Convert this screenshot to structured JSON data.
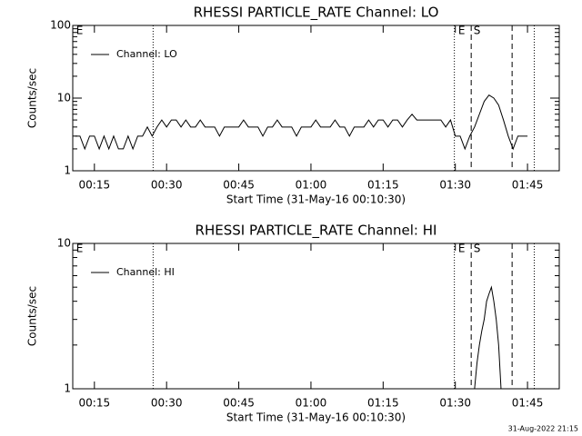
{
  "chart_data": [
    {
      "type": "line",
      "title": "RHESSI PARTICLE_RATE Channel: LO",
      "xlabel": "Start Time (31-May-16 00:10:30)",
      "ylabel": "Counts/sec",
      "log_y": true,
      "legend": "upper left",
      "xlim": [
        10.5,
        111.6
      ],
      "ylim": [
        1,
        100
      ],
      "yticks": [
        1,
        10,
        100
      ],
      "xticks": [
        {
          "value": 15,
          "label": "00:15"
        },
        {
          "value": 30,
          "label": "00:30"
        },
        {
          "value": 45,
          "label": "00:45"
        },
        {
          "value": 60,
          "label": "01:00"
        },
        {
          "value": 75,
          "label": "01:15"
        },
        {
          "value": 90,
          "label": "01:30"
        },
        {
          "value": 105,
          "label": "01:45"
        }
      ],
      "x": [
        11,
        12,
        13,
        14,
        15,
        16,
        17,
        18,
        19,
        20,
        21,
        22,
        23,
        24,
        25,
        26,
        27,
        28,
        29,
        30,
        31,
        32,
        33,
        34,
        35,
        36,
        37,
        38,
        39,
        40,
        41,
        42,
        43,
        44,
        45,
        46,
        47,
        48,
        49,
        50,
        51,
        52,
        53,
        54,
        55,
        56,
        57,
        58,
        59,
        60,
        61,
        62,
        63,
        64,
        65,
        66,
        67,
        68,
        69,
        70,
        71,
        72,
        73,
        74,
        75,
        76,
        77,
        78,
        79,
        80,
        81,
        82,
        83,
        84,
        85,
        86,
        87,
        88,
        89,
        90,
        91,
        92,
        93,
        94,
        95,
        96,
        97,
        98,
        99,
        100,
        101,
        102,
        103,
        104,
        105
      ],
      "series": [
        {
          "name": "Channel: LO",
          "color": "#000000",
          "values": [
            3,
            3,
            2,
            3,
            3,
            2,
            3,
            2,
            3,
            2,
            2,
            3,
            2,
            3,
            3,
            4,
            3,
            4,
            5,
            4,
            5,
            5,
            4,
            5,
            4,
            4,
            5,
            4,
            4,
            4,
            3,
            4,
            4,
            4,
            4,
            5,
            4,
            4,
            4,
            3,
            4,
            4,
            5,
            4,
            4,
            4,
            3,
            4,
            4,
            4,
            5,
            4,
            4,
            4,
            5,
            4,
            4,
            3,
            4,
            4,
            4,
            5,
            4,
            5,
            5,
            4,
            5,
            5,
            4,
            5,
            6,
            5,
            5,
            5,
            5,
            5,
            5,
            4,
            5,
            3,
            3,
            2,
            3,
            4,
            6,
            9,
            11,
            10,
            8,
            5,
            3,
            2,
            3,
            3,
            3
          ]
        }
      ],
      "vlines": [
        {
          "x": 27.2,
          "style": "dotted"
        },
        {
          "x": 89.8,
          "style": "dotted"
        },
        {
          "x": 93.3,
          "style": "dashed"
        },
        {
          "x": 101.8,
          "style": "dashed"
        },
        {
          "x": 106.4,
          "style": "dotted"
        }
      ],
      "annotations": [
        {
          "text": "E",
          "x": 11.2
        },
        {
          "text": "E",
          "x": 90.6
        },
        {
          "text": "S",
          "x": 93.8
        }
      ]
    },
    {
      "type": "line",
      "title": "RHESSI PARTICLE_RATE Channel: HI",
      "xlabel": "Start Time (31-May-16 00:10:30)",
      "ylabel": "Counts/sec",
      "log_y": true,
      "legend": "upper left",
      "xlim": [
        10.5,
        111.6
      ],
      "ylim": [
        1,
        10
      ],
      "yticks": [
        1,
        10
      ],
      "xticks": [
        {
          "value": 15,
          "label": "00:15"
        },
        {
          "value": 30,
          "label": "00:30"
        },
        {
          "value": 45,
          "label": "00:45"
        },
        {
          "value": 60,
          "label": "01:00"
        },
        {
          "value": 75,
          "label": "01:15"
        },
        {
          "value": 90,
          "label": "01:30"
        },
        {
          "value": 105,
          "label": "01:45"
        }
      ],
      "x": [
        94,
        94.5,
        95,
        95.5,
        96,
        96.5,
        97,
        97.5,
        98,
        98.5,
        99,
        99.5
      ],
      "series": [
        {
          "name": "Channel: HI",
          "color": "#000000",
          "values": [
            1,
            1.5,
            2,
            2.5,
            3,
            4,
            4.5,
            5,
            4,
            3,
            2,
            1
          ]
        }
      ],
      "vlines": [
        {
          "x": 27.2,
          "style": "dotted"
        },
        {
          "x": 89.8,
          "style": "dotted"
        },
        {
          "x": 93.3,
          "style": "dashed"
        },
        {
          "x": 101.8,
          "style": "dashed"
        },
        {
          "x": 106.4,
          "style": "dotted"
        }
      ],
      "annotations": [
        {
          "text": "E",
          "x": 11.2
        },
        {
          "text": "E",
          "x": 90.6
        },
        {
          "text": "S",
          "x": 93.8
        }
      ]
    }
  ],
  "footer": "31-Aug-2022 21:15"
}
